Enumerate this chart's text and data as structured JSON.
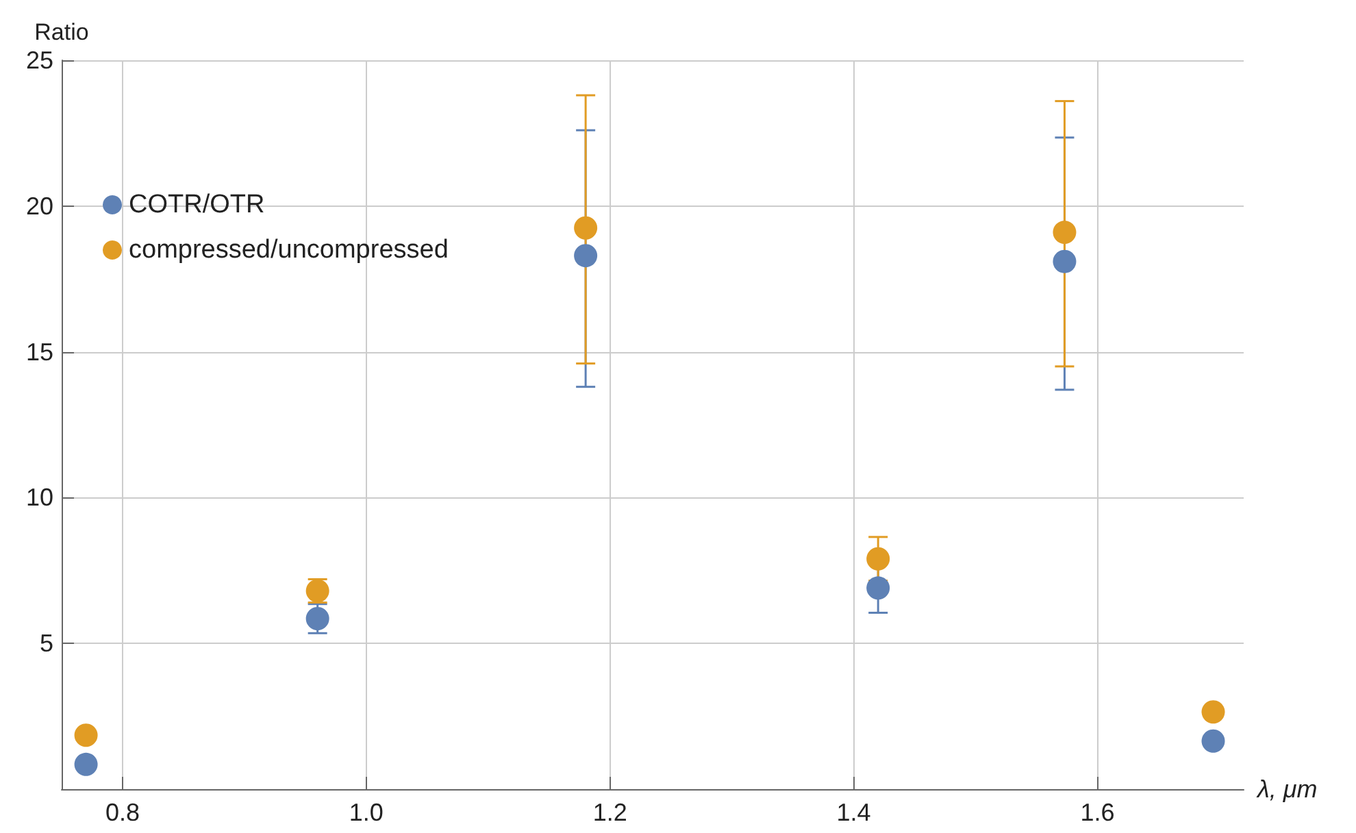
{
  "chart_data": {
    "type": "scatter",
    "xlabel": "λ, μm",
    "ylabel": "Ratio",
    "x": [
      0.77,
      0.96,
      1.18,
      1.42,
      1.573,
      1.695
    ],
    "series": [
      {
        "name": "COTR/OTR",
        "color": "#5e81b5",
        "values": [
          0.85,
          5.85,
          18.3,
          6.9,
          18.1,
          1.65
        ],
        "errors": [
          null,
          0.5,
          [
            13.8,
            22.6
          ],
          0.85,
          [
            13.7,
            22.35
          ],
          null
        ]
      },
      {
        "name": "compressed/uncompressed",
        "color": "#e19c24",
        "values": [
          1.85,
          6.8,
          19.25,
          7.9,
          19.1,
          2.65
        ],
        "errors": [
          null,
          0.4,
          [
            14.6,
            23.8
          ],
          0.75,
          [
            14.5,
            23.6
          ],
          null
        ]
      }
    ],
    "xlim": [
      0.75,
      1.72
    ],
    "xticks": [
      0.8,
      {
        "value": 1,
        "label": "1.0"
      },
      1.2,
      1.4,
      1.6
    ],
    "ylim": [
      0,
      25
    ],
    "yticks": [
      5,
      10,
      15,
      20,
      25
    ],
    "grid": true,
    "legend": "top left",
    "marker": "circle"
  }
}
